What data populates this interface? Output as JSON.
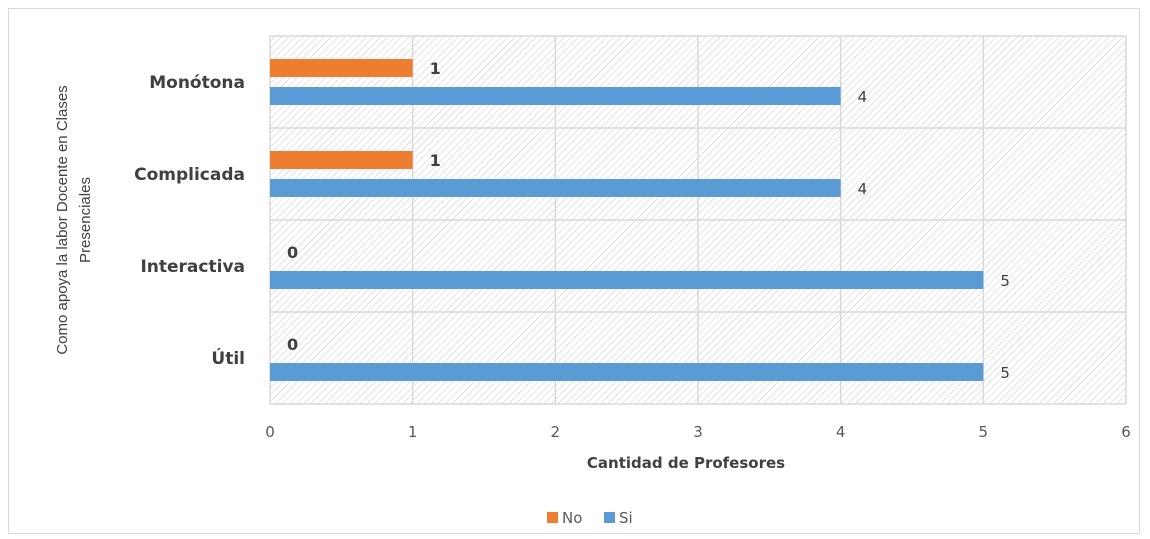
{
  "chart_data": {
    "type": "bar",
    "orientation": "horizontal",
    "categories": [
      "Monótona",
      "Complicada",
      "Interactiva",
      "Útil"
    ],
    "series": [
      {
        "name": "No",
        "color": "#ed7d31",
        "values": [
          1,
          1,
          0,
          0
        ]
      },
      {
        "name": "Si",
        "color": "#5b9bd5",
        "values": [
          4,
          4,
          5,
          5
        ]
      }
    ],
    "title": "",
    "xlabel": "Cantidad de Profesores",
    "ylabel_lines": [
      "Como apoya la labor Docente en Clases",
      "Presenciales"
    ],
    "xlim": [
      0,
      6
    ],
    "xticks": [
      "0",
      "1",
      "2",
      "3",
      "4",
      "5",
      "6"
    ],
    "grid": true,
    "legend_position": "bottom"
  }
}
